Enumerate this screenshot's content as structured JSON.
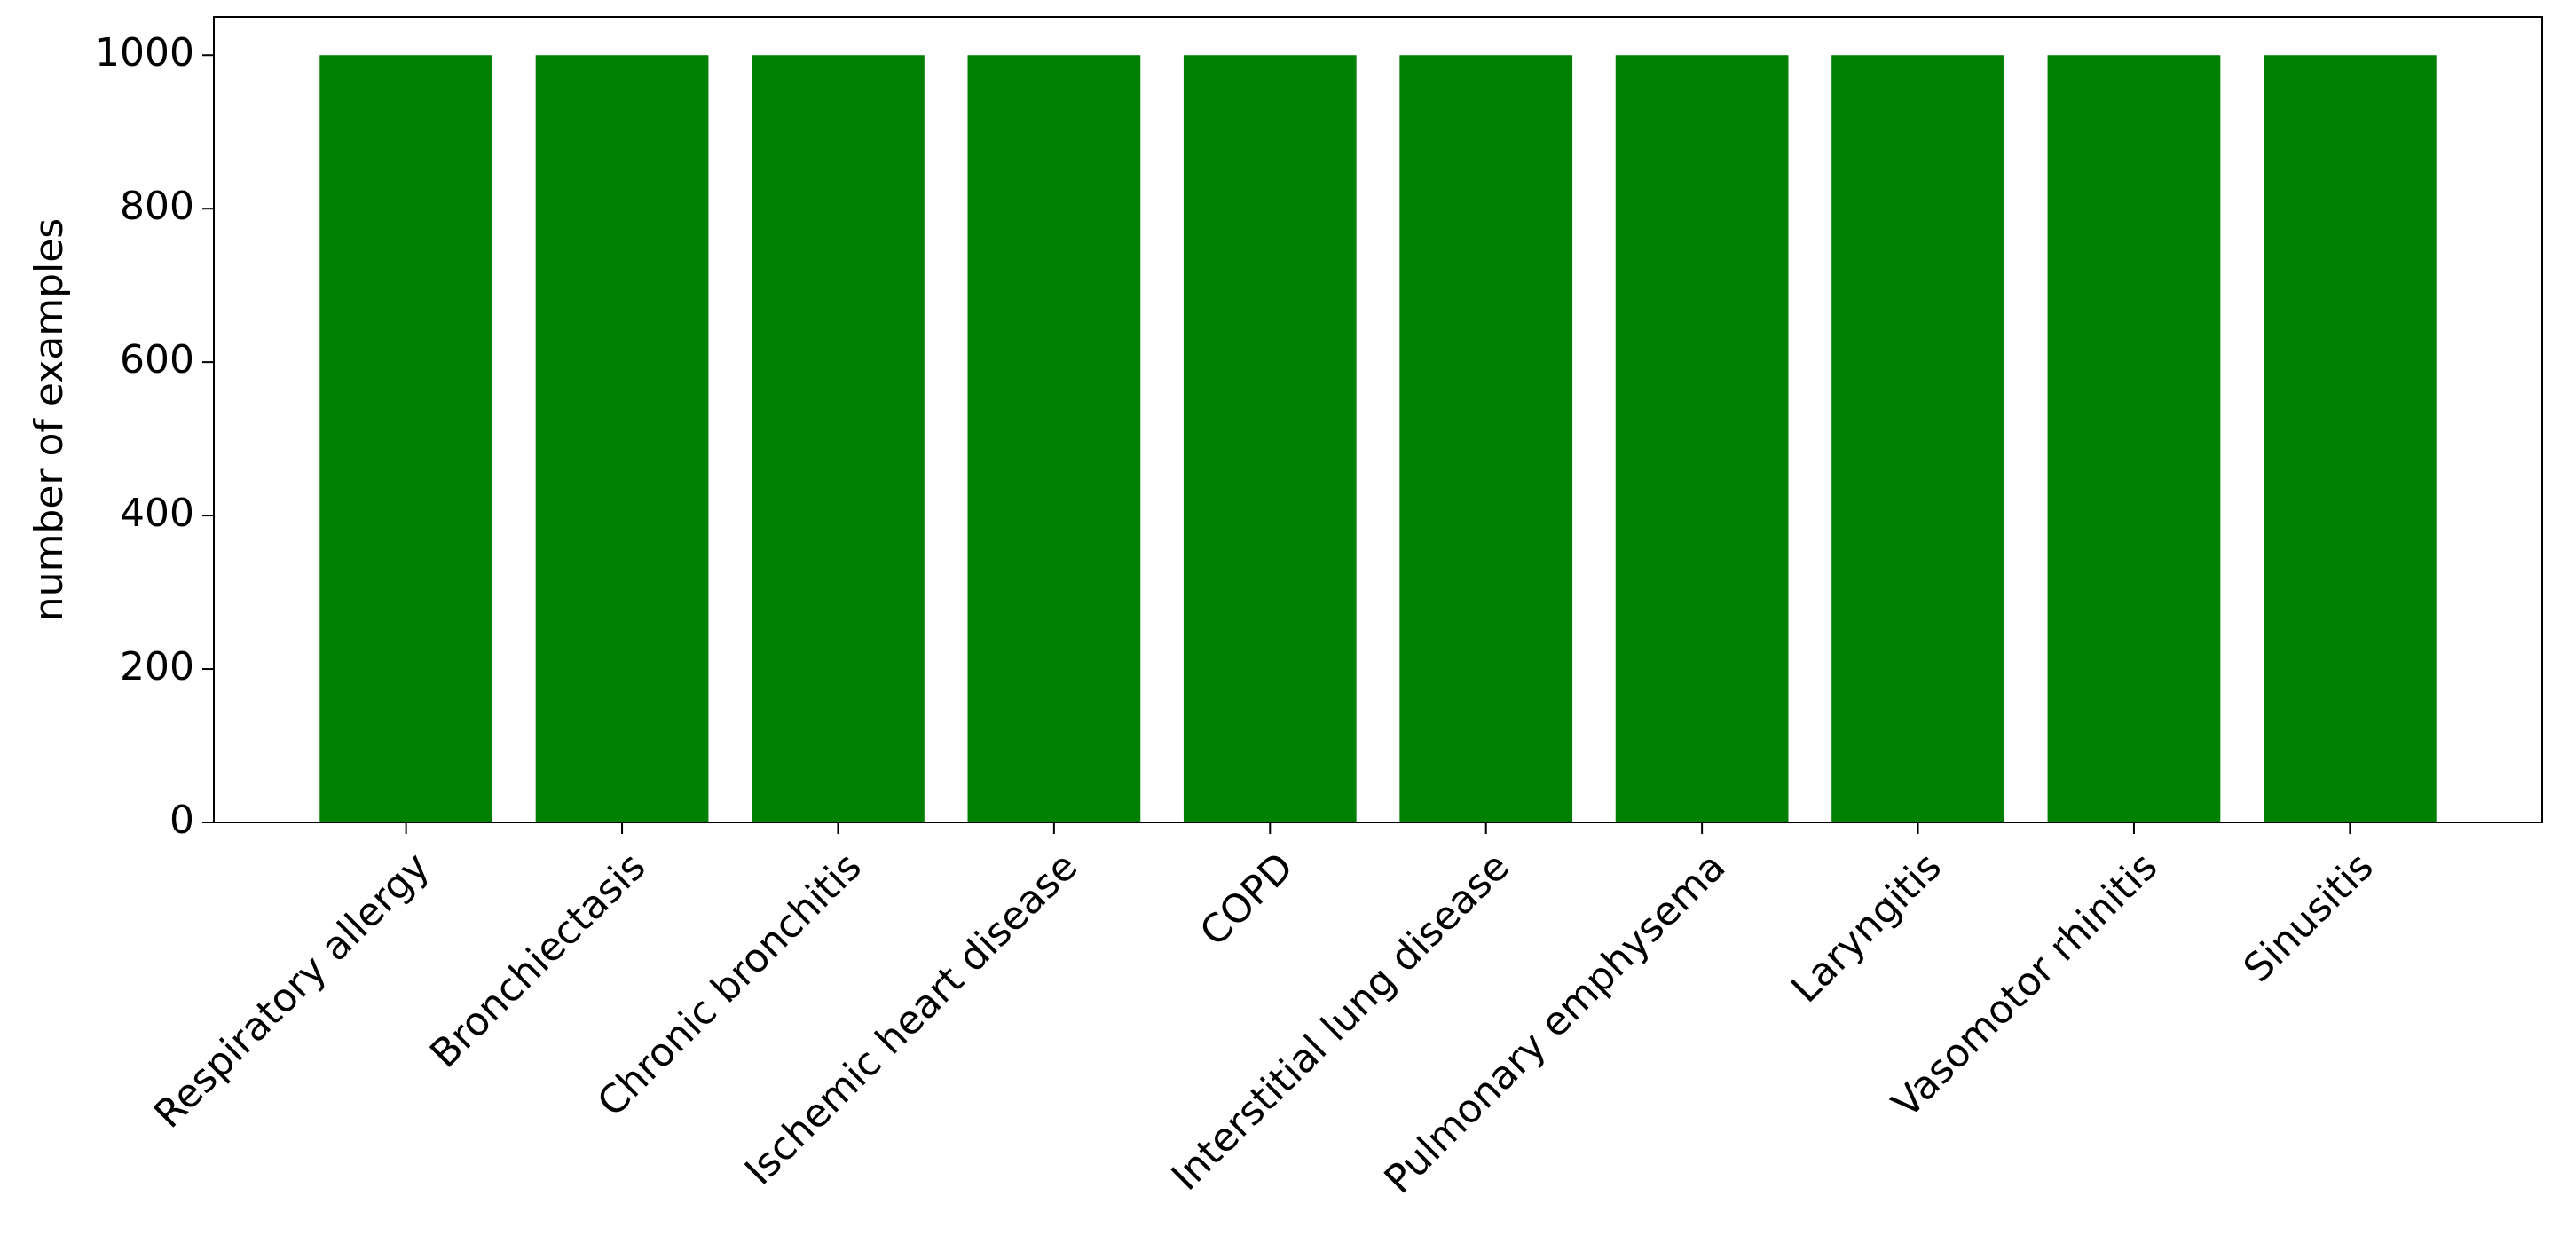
{
  "chart_data": {
    "type": "bar",
    "y_label": "number of examples",
    "categories": [
      "Respiratory allergy",
      "Bronchiectasis",
      "Chronic bronchitis",
      "Ischemic heart disease",
      "COPD",
      "Interstitial lung disease",
      "Pulmonary emphysema",
      "Laryngitis",
      "Vasomotor rhinitis",
      "Sinusitis"
    ],
    "values": [
      1000,
      1000,
      1000,
      1000,
      1000,
      1000,
      1000,
      1000,
      1000,
      1000
    ],
    "color": "#008000",
    "ylim": [
      0,
      1050
    ],
    "yticks": [
      0,
      200,
      400,
      600,
      800,
      1000
    ],
    "grid": false
  }
}
